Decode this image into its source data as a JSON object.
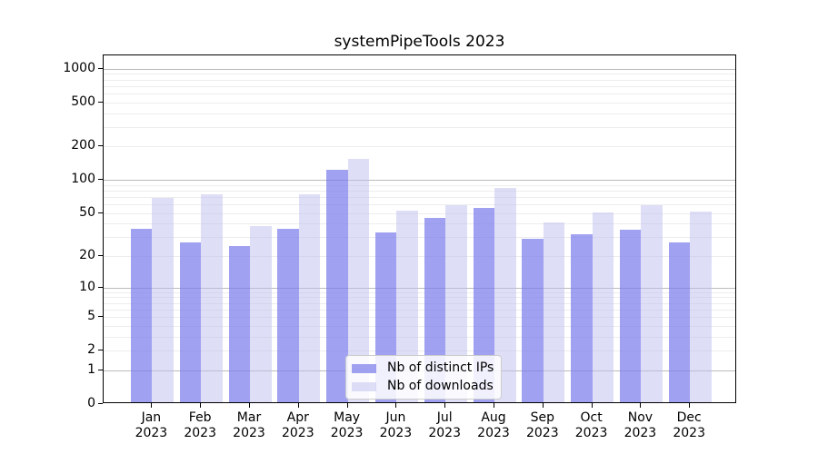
{
  "chart_data": {
    "type": "bar",
    "title": "systemPipeTools 2023",
    "categories": [
      "Jan",
      "Feb",
      "Mar",
      "Apr",
      "May",
      "Jun",
      "Jul",
      "Aug",
      "Sep",
      "Oct",
      "Nov",
      "Dec"
    ],
    "year_label": "2023",
    "series": [
      {
        "name": "Nb of distinct IPs",
        "color": "#7d7deb",
        "alpha": 0.72,
        "values": [
          35,
          26,
          24,
          35,
          120,
          32,
          44,
          54,
          28,
          31,
          34,
          26
        ]
      },
      {
        "name": "Nb of downloads",
        "color": "#bebef0",
        "alpha": 0.5,
        "values": [
          67,
          72,
          37,
          72,
          150,
          51,
          57,
          82,
          40,
          49,
          57,
          50
        ]
      }
    ],
    "yscale": "log1p",
    "ylim": [
      0,
      1300
    ],
    "yticks": [
      0,
      1,
      2,
      5,
      10,
      20,
      50,
      100,
      200,
      500,
      1000
    ],
    "grid": {
      "axis": "y",
      "major_lines": [
        1,
        10,
        100,
        1000
      ],
      "minor_lines": true
    },
    "legend_position": "inside lower center",
    "colors": {
      "spine": "#000000",
      "grid_major": "#bbbbbb",
      "grid_minor": "#ededed",
      "text": "#000000",
      "legend_border": "#cccccc",
      "legend_bg": "#ffffff"
    }
  }
}
